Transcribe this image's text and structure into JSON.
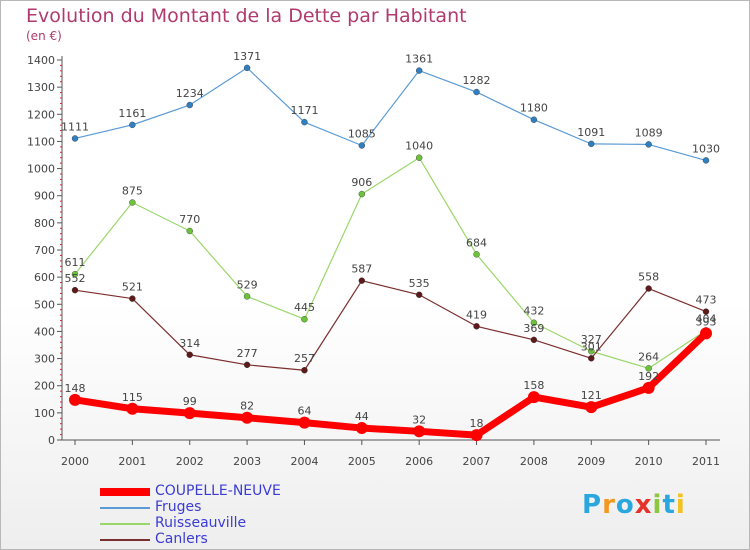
{
  "title": "Evolution du Montant de la Dette par Habitant",
  "subtitle": "(en €)",
  "logo": {
    "text": "Proxiti",
    "colors": [
      "#2aa7df",
      "#f29a1f",
      "#2aa7df",
      "#e5332a",
      "#8dc63f",
      "#2aa7df",
      "#f2c21f"
    ]
  },
  "chart_data": {
    "type": "line",
    "title": "Evolution du Montant de la Dette par Habitant",
    "subtitle": "(en €)",
    "x": [
      "2000",
      "2001",
      "2002",
      "2003",
      "2004",
      "2005",
      "2006",
      "2007",
      "2008",
      "2009",
      "2010",
      "2011"
    ],
    "yticks": [
      0,
      100,
      200,
      300,
      400,
      500,
      600,
      700,
      800,
      900,
      1000,
      1100,
      1200,
      1300,
      1400
    ],
    "ylim": [
      0,
      1400
    ],
    "grid": false,
    "legend_position": "bottom-left",
    "series": [
      {
        "name": "Fruges",
        "color": "#5b9bd5",
        "marker": "#2f7fc1",
        "values": [
          1111,
          1161,
          1234,
          1371,
          1171,
          1085,
          1361,
          1282,
          1180,
          1091,
          1089,
          1030
        ],
        "labels": [
          "1111",
          "1161",
          "1234",
          "1371",
          "1171",
          "1085",
          "1361",
          "1282",
          "1180",
          "1091",
          "1089",
          "1030"
        ]
      },
      {
        "name": "Ruisseauville",
        "color": "#9ad76a",
        "marker": "#6cc33a",
        "values": [
          611,
          875,
          770,
          529,
          445,
          906,
          1040,
          684,
          432,
          327,
          264,
          404
        ],
        "labels": [
          "611",
          "875",
          "770",
          "529",
          "445",
          "906",
          "1040",
          "684",
          "432",
          "327",
          "264",
          "404"
        ]
      },
      {
        "name": "Canlers",
        "color": "#7b2e2e",
        "marker": "#5e1a1a",
        "values": [
          552,
          521,
          314,
          277,
          257,
          587,
          535,
          419,
          369,
          301,
          558,
          473
        ],
        "labels": [
          "552",
          "521",
          "314",
          "277",
          "257",
          "587",
          "535",
          "419",
          "369",
          "301",
          "558",
          "473"
        ]
      },
      {
        "name": "COUPELLE-NEUVE",
        "color": "#ff0000",
        "marker": "#ff0000",
        "values": [
          148,
          115,
          99,
          82,
          64,
          44,
          32,
          18,
          158,
          121,
          192,
          393
        ],
        "labels": [
          "148",
          "115",
          "99",
          "82",
          "64",
          "44",
          "32",
          "18",
          "158",
          "121",
          "192",
          "393"
        ]
      }
    ],
    "legend": [
      "COUPELLE-NEUVE",
      "Fruges",
      "Ruisseauville",
      "Canlers"
    ]
  }
}
